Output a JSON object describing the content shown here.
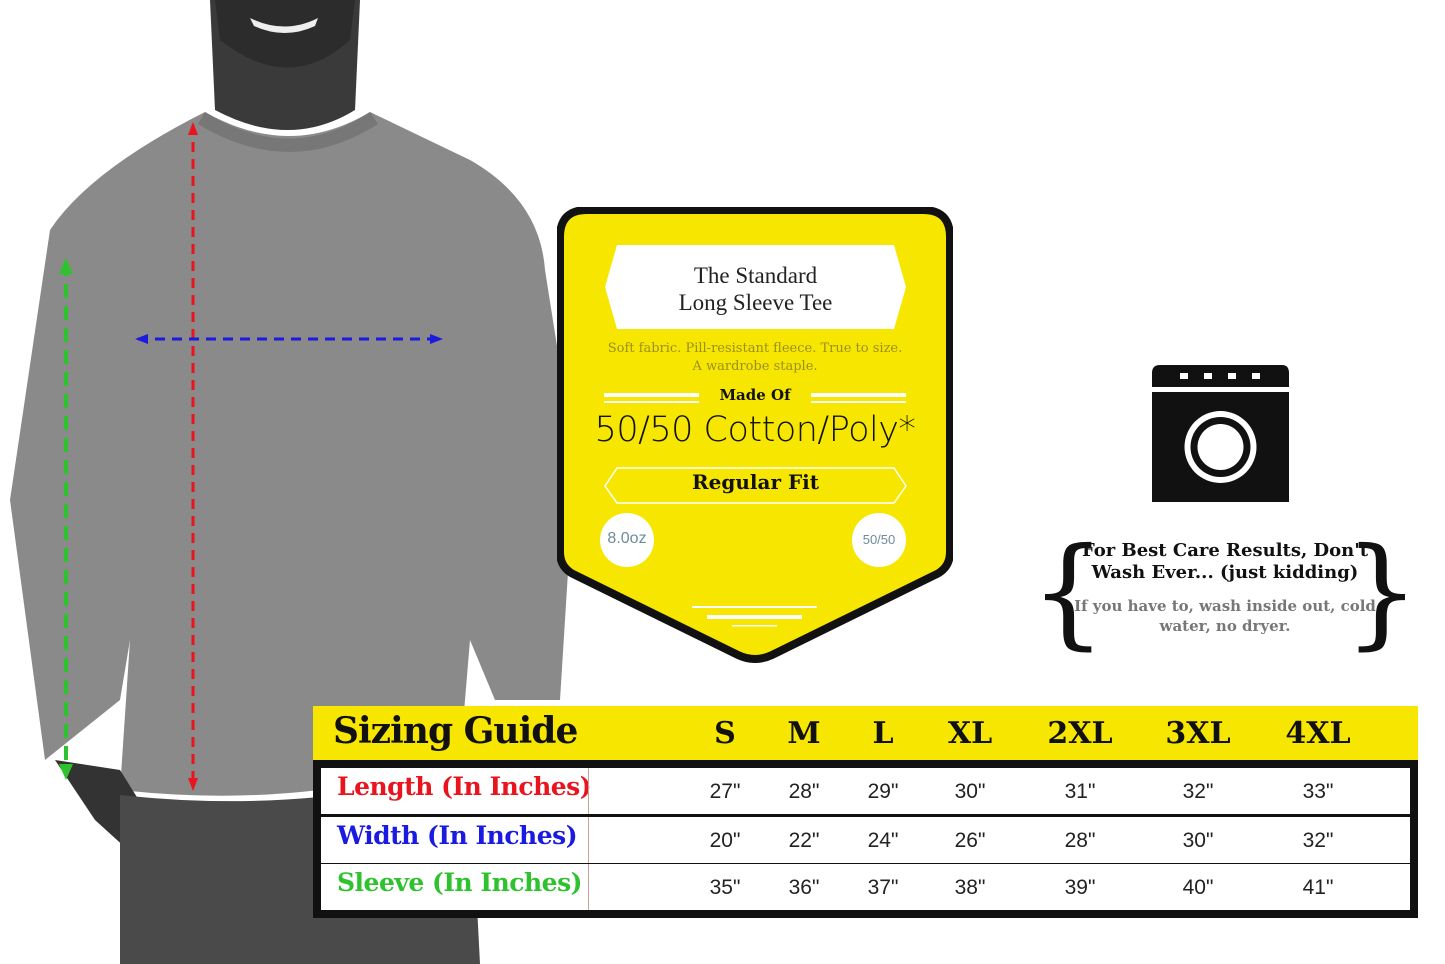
{
  "label": {
    "title_line1": "The Standard",
    "title_line2": "Long Sleeve Tee",
    "description": "Soft fabric. Pill-resistant fleece. True to size. A wardrobe staple.",
    "made_of_heading": "Made Of",
    "material": "50/50 Cotton/Poly*",
    "fit": "Regular Fit",
    "weight_badge": "8.0oz",
    "blend_badge": "50/50"
  },
  "care": {
    "icon": "washing-machine-icon",
    "heading": "For Best Care Results, Don't Wash Ever... (just kidding)",
    "instructions": "If you have to, wash inside out, cold water, no dryer.",
    "brace_left": "{",
    "brace_right": "}"
  },
  "sizing": {
    "title": "Sizing Guide",
    "sizes": [
      "S",
      "M",
      "L",
      "XL",
      "2XL",
      "3XL",
      "4XL"
    ],
    "rows": [
      {
        "label": "Length (In Inches)",
        "color": "#e8141e",
        "values": [
          "27\"",
          "28\"",
          "29\"",
          "30\"",
          "31\"",
          "32\"",
          "33\""
        ]
      },
      {
        "label": "Width (In Inches)",
        "color": "#1a1ae0",
        "values": [
          "20\"",
          "22\"",
          "24\"",
          "26\"",
          "28\"",
          "30\"",
          "32\""
        ]
      },
      {
        "label": "Sleeve (In Inches)",
        "color": "#2fc22f",
        "values": [
          "35\"",
          "36\"",
          "37\"",
          "38\"",
          "39\"",
          "40\"",
          "41\""
        ]
      }
    ]
  },
  "colors": {
    "accent_yellow": "#f7e600",
    "length": "#e8141e",
    "width": "#1a1ae0",
    "sleeve": "#2fc22f"
  }
}
